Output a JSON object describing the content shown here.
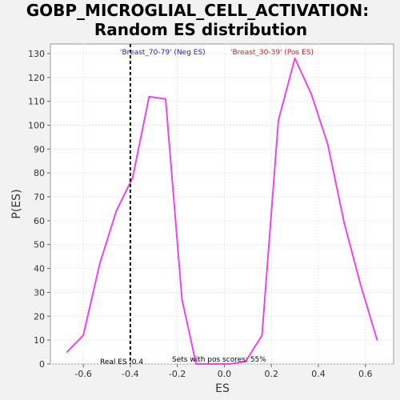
{
  "chart_data": {
    "type": "line",
    "title": "GOBP_MICROGLIAL_CELL_ACTIVATION:",
    "subtitle": "Random ES distribution",
    "xlabel": "ES",
    "ylabel": "P(ES)",
    "xlim": [
      -0.74,
      0.72
    ],
    "ylim": [
      0,
      134
    ],
    "xticks": [
      -0.6,
      -0.4,
      -0.2,
      0.0,
      0.2,
      0.4,
      0.6
    ],
    "yticks": [
      0,
      10,
      20,
      30,
      40,
      50,
      60,
      70,
      80,
      90,
      100,
      110,
      120,
      130
    ],
    "grid": true,
    "series": [
      {
        "color": "#ee44ee",
        "x": [
          -0.67,
          -0.6,
          -0.53,
          -0.46,
          -0.39,
          -0.32,
          -0.25,
          -0.18,
          -0.12,
          -0.05,
          0.02,
          0.09,
          0.16,
          0.23,
          0.3,
          0.37,
          0.44,
          0.51,
          0.58,
          0.65
        ],
        "y": [
          5,
          12,
          42,
          64,
          78,
          112,
          111,
          27,
          0,
          0,
          0,
          1,
          12,
          102,
          128,
          113,
          92,
          59,
          33,
          10
        ]
      }
    ],
    "real_es": -0.4,
    "annotations": {
      "neg_label": "'Breast_70-79' (Neg ES)",
      "pos_label": "'Breast_30-39' (Pos ES)",
      "real_es_label": "Real ES -0.4",
      "pos_scores_label": "Sets with pos scores: 55%"
    },
    "colors": {
      "line": "#ee44ee",
      "neg_label": "#2222cc",
      "pos_label": "#cc2222",
      "marker": "#000000"
    }
  }
}
